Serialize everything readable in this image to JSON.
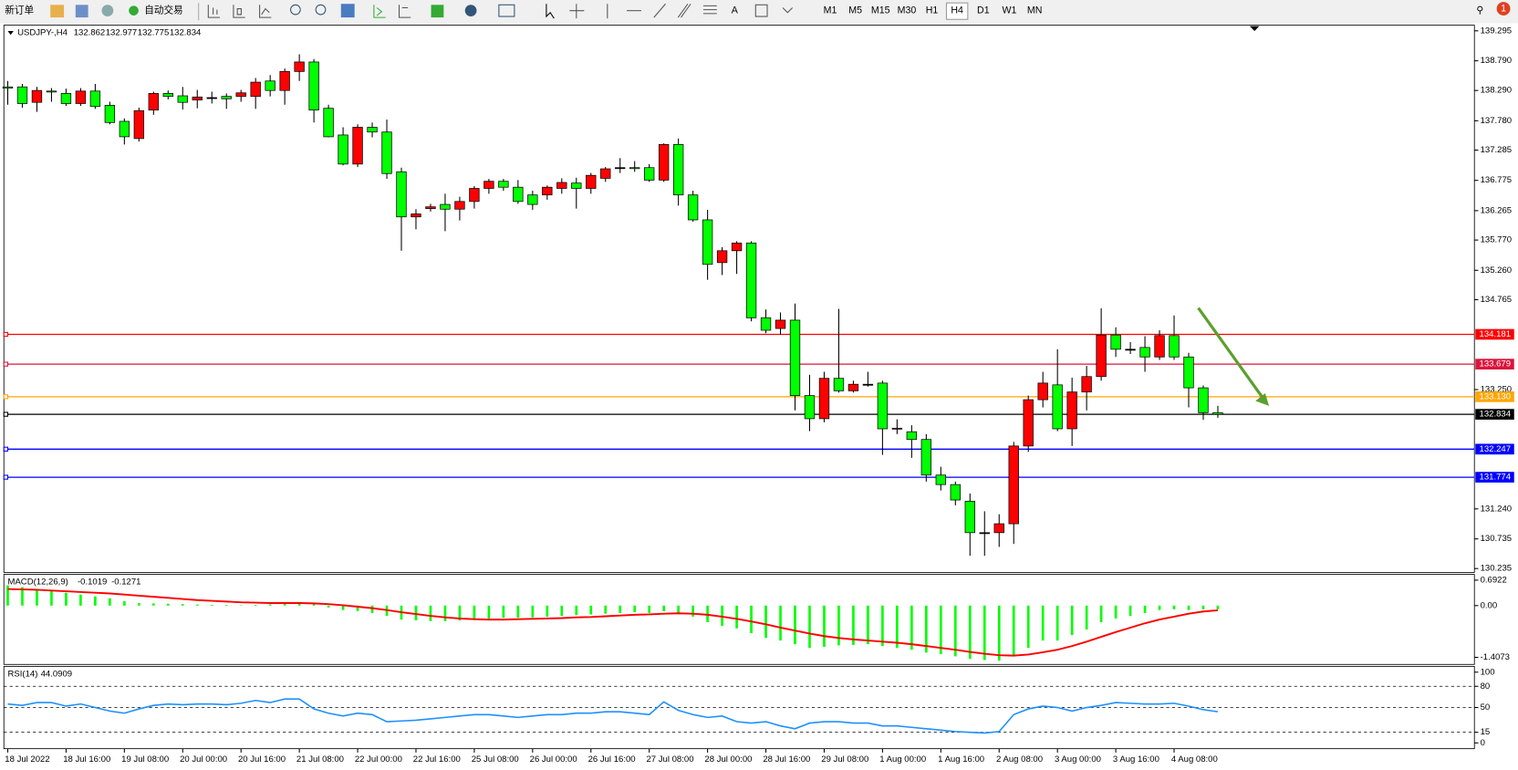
{
  "toolbar": {
    "new_order": "新订单",
    "auto_trade": "自动交易",
    "timeframes": [
      "M1",
      "M5",
      "M15",
      "M30",
      "H1",
      "H4",
      "D1",
      "W1",
      "MN"
    ],
    "active_timeframe": 5,
    "badge": "1"
  },
  "chart": {
    "type": "candlestick",
    "symbol": "USDJPY-,H4",
    "header_ohlc": [
      132.862,
      132.977,
      132.775,
      132.834
    ],
    "ylim": [
      130.17,
      139.39
    ],
    "yticks": [
      139.295,
      {
        "value": 138.79,
        "label": "138.790"
      },
      {
        "value": 138.29,
        "label": "138.290"
      },
      {
        "value": 137.78,
        "label": "137.780"
      },
      137.285,
      136.775,
      136.265,
      {
        "value": 135.77,
        "label": "135.770"
      },
      {
        "value": 135.26,
        "label": "135.260"
      },
      134.765,
      {
        "value": 133.25,
        "label": "133.250"
      },
      {
        "value": 131.24,
        "label": "131.240"
      },
      130.735,
      130.235
    ],
    "up_color": "#ff0000",
    "down_color": "#00ff00",
    "candles": [
      [
        138.35,
        138.45,
        138.05,
        138.33
      ],
      [
        138.35,
        138.4,
        138.0,
        138.07
      ],
      [
        138.09,
        138.35,
        137.93,
        138.29
      ],
      [
        138.28,
        138.33,
        138.1,
        138.27
      ],
      [
        138.24,
        138.32,
        138.03,
        138.07
      ],
      [
        138.07,
        138.33,
        138.03,
        138.28
      ],
      [
        138.28,
        138.4,
        137.98,
        138.02
      ],
      [
        138.04,
        138.1,
        137.72,
        137.75
      ],
      [
        137.77,
        137.82,
        137.38,
        137.51
      ],
      [
        137.48,
        138.0,
        137.43,
        137.95
      ],
      [
        137.96,
        138.27,
        137.88,
        138.24
      ],
      [
        138.24,
        138.29,
        138.14,
        138.19
      ],
      [
        138.2,
        138.35,
        137.97,
        138.09
      ],
      [
        138.13,
        138.3,
        137.99,
        138.18
      ],
      [
        138.17,
        138.27,
        138.07,
        138.17
      ],
      [
        138.19,
        138.24,
        137.98,
        138.15
      ],
      [
        138.19,
        138.3,
        138.1,
        138.25
      ],
      [
        138.19,
        138.5,
        137.98,
        138.43
      ],
      [
        138.45,
        138.55,
        138.19,
        138.29
      ],
      [
        138.29,
        138.66,
        138.05,
        138.61
      ],
      [
        138.61,
        138.9,
        138.45,
        138.77
      ],
      [
        138.77,
        138.82,
        137.75,
        137.96
      ],
      [
        137.99,
        138.05,
        137.5,
        137.51
      ],
      [
        137.54,
        137.67,
        137.03,
        137.05
      ],
      [
        137.05,
        137.72,
        137.0,
        137.67
      ],
      [
        137.67,
        137.75,
        137.5,
        137.59
      ],
      [
        137.59,
        137.8,
        136.8,
        136.89
      ],
      [
        136.92,
        136.99,
        135.59,
        136.16
      ],
      [
        136.16,
        136.29,
        135.95,
        136.21
      ],
      [
        136.3,
        136.38,
        136.25,
        136.33
      ],
      [
        136.37,
        136.55,
        135.92,
        136.29
      ],
      [
        136.29,
        136.5,
        136.1,
        136.42
      ],
      [
        136.42,
        136.68,
        136.3,
        136.64
      ],
      [
        136.64,
        136.8,
        136.55,
        136.76
      ],
      [
        136.76,
        136.8,
        136.6,
        136.66
      ],
      [
        136.66,
        136.78,
        136.38,
        136.42
      ],
      [
        136.53,
        136.6,
        136.28,
        136.37
      ],
      [
        136.53,
        136.69,
        136.45,
        136.66
      ],
      [
        136.64,
        136.81,
        136.55,
        136.74
      ],
      [
        136.73,
        136.82,
        136.3,
        136.64
      ],
      [
        136.64,
        136.9,
        136.55,
        136.86
      ],
      [
        136.81,
        137.0,
        136.75,
        136.97
      ],
      [
        136.99,
        137.15,
        136.9,
        136.99
      ],
      [
        136.99,
        137.1,
        136.92,
        136.98
      ],
      [
        136.99,
        137.05,
        136.75,
        136.78
      ],
      [
        136.78,
        137.4,
        136.75,
        137.38
      ],
      [
        137.38,
        137.48,
        136.35,
        136.53
      ],
      [
        136.53,
        136.6,
        136.08,
        136.11
      ],
      [
        136.11,
        136.28,
        135.1,
        135.36
      ],
      [
        135.39,
        135.65,
        135.18,
        135.59
      ],
      [
        135.59,
        135.75,
        135.2,
        135.72
      ],
      [
        135.72,
        135.75,
        134.4,
        134.46
      ],
      [
        134.46,
        134.6,
        134.2,
        134.25
      ],
      [
        134.28,
        134.55,
        134.18,
        134.42
      ],
      [
        134.42,
        134.7,
        132.9,
        133.15
      ],
      [
        133.15,
        133.5,
        132.55,
        132.76
      ],
      [
        132.76,
        133.55,
        132.7,
        133.44
      ],
      [
        133.44,
        134.61,
        133.2,
        133.23
      ],
      [
        133.23,
        133.4,
        133.2,
        133.34
      ],
      [
        133.34,
        133.55,
        133.3,
        133.34
      ],
      [
        133.36,
        133.4,
        132.15,
        132.59
      ],
      [
        132.59,
        132.75,
        132.5,
        132.6
      ],
      [
        132.54,
        132.65,
        132.1,
        132.41
      ],
      [
        132.41,
        132.5,
        131.7,
        131.81
      ],
      [
        131.81,
        131.95,
        131.55,
        131.65
      ],
      [
        131.65,
        131.7,
        131.3,
        131.39
      ],
      [
        131.37,
        131.5,
        130.45,
        130.84
      ],
      [
        130.84,
        131.2,
        130.45,
        130.84
      ],
      [
        130.84,
        131.15,
        130.6,
        130.99
      ],
      [
        130.99,
        132.37,
        130.65,
        132.3
      ],
      [
        132.3,
        133.15,
        132.2,
        133.08
      ],
      [
        133.08,
        133.55,
        132.95,
        133.36
      ],
      [
        133.33,
        133.93,
        132.55,
        132.59
      ],
      [
        132.59,
        133.45,
        132.3,
        133.21
      ],
      [
        133.21,
        133.65,
        132.9,
        133.47
      ],
      [
        133.47,
        134.62,
        133.4,
        134.17
      ],
      [
        134.17,
        134.3,
        133.8,
        133.93
      ],
      [
        133.93,
        134.05,
        133.85,
        133.93
      ],
      [
        133.96,
        134.15,
        133.55,
        133.8
      ],
      [
        133.8,
        134.25,
        133.75,
        134.16
      ],
      [
        134.16,
        134.5,
        133.75,
        133.8
      ],
      [
        133.8,
        133.87,
        132.95,
        133.28
      ],
      [
        133.28,
        133.32,
        132.74,
        132.86
      ],
      [
        132.862,
        132.977,
        132.775,
        132.834
      ]
    ],
    "levels": [
      {
        "value": 134.181,
        "color": "#ff0000"
      },
      {
        "value": 133.679,
        "color": "#dc143c"
      },
      {
        "value": {
          "value": 133.13,
          "label": "133.130"
        },
        "color": "#ffa500"
      },
      {
        "value": 132.247,
        "color": "#0000ff"
      },
      {
        "value": 131.774,
        "color": "#0000ff"
      }
    ],
    "current": {
      "value": 132.834,
      "color": "#000000"
    },
    "x_labels": [
      "18 Jul 2022",
      "18 Jul 16:00",
      "19 Jul 08:00",
      "20 Jul 00:00",
      "20 Jul 16:00",
      "21 Jul 08:00",
      "22 Jul 00:00",
      "22 Jul 16:00",
      "25 Jul 08:00",
      "26 Jul 00:00",
      "26 Jul 16:00",
      "27 Jul 08:00",
      "28 Jul 00:00",
      "28 Jul 16:00",
      "29 Jul 08:00",
      "1 Aug 00:00",
      "1 Aug 16:00",
      "2 Aug 08:00",
      "3 Aug 00:00",
      "3 Aug 16:00",
      "4 Aug 08:00"
    ]
  },
  "macd": {
    "label": "MACD(12,26,9)",
    "readout": [
      -0.1019,
      -0.1271
    ],
    "ylim": [
      -1.6,
      0.85
    ],
    "yticks": [
      0.6922,
      {
        "value": 0,
        "label": "0.00"
      },
      -1.4073
    ],
    "hist_color": "#00ff00",
    "signal_color": "#ff0000",
    "histogram": [
      0.55,
      0.5,
      0.45,
      0.4,
      0.35,
      0.3,
      0.25,
      0.2,
      0.12,
      0.07,
      0.06,
      0.05,
      0.04,
      0.03,
      0.02,
      0.02,
      0.01,
      0.02,
      0.03,
      0.05,
      0.08,
      0.04,
      -0.05,
      -0.12,
      -0.15,
      -0.2,
      -0.28,
      -0.38,
      -0.4,
      -0.42,
      -0.42,
      -0.4,
      -0.38,
      -0.35,
      -0.33,
      -0.33,
      -0.32,
      -0.3,
      -0.28,
      -0.26,
      -0.24,
      -0.22,
      -0.2,
      -0.18,
      -0.2,
      -0.15,
      -0.2,
      -0.3,
      -0.45,
      -0.55,
      -0.62,
      -0.75,
      -0.88,
      -0.95,
      -1.05,
      -1.15,
      -1.12,
      -1.08,
      -1.07,
      -1.05,
      -1.1,
      -1.15,
      -1.2,
      -1.28,
      -1.32,
      -1.38,
      -1.45,
      -1.48,
      -1.5,
      -1.35,
      -1.15,
      -0.95,
      -0.95,
      -0.8,
      -0.65,
      -0.45,
      -0.35,
      -0.28,
      -0.2,
      -0.12,
      -0.1,
      -0.12,
      -0.1,
      -0.1019
    ],
    "signal": [
      0.45,
      0.44,
      0.43,
      0.41,
      0.39,
      0.37,
      0.35,
      0.33,
      0.3,
      0.27,
      0.24,
      0.21,
      0.18,
      0.15,
      0.13,
      0.11,
      0.09,
      0.08,
      0.07,
      0.07,
      0.07,
      0.06,
      0.04,
      0.01,
      -0.03,
      -0.07,
      -0.12,
      -0.18,
      -0.23,
      -0.28,
      -0.32,
      -0.35,
      -0.37,
      -0.38,
      -0.38,
      -0.37,
      -0.36,
      -0.35,
      -0.34,
      -0.32,
      -0.31,
      -0.29,
      -0.27,
      -0.25,
      -0.24,
      -0.22,
      -0.21,
      -0.22,
      -0.25,
      -0.3,
      -0.36,
      -0.43,
      -0.51,
      -0.6,
      -0.68,
      -0.76,
      -0.83,
      -0.88,
      -0.92,
      -0.95,
      -0.98,
      -1.01,
      -1.05,
      -1.1,
      -1.15,
      -1.2,
      -1.26,
      -1.31,
      -1.35,
      -1.36,
      -1.33,
      -1.27,
      -1.2,
      -1.1,
      -0.98,
      -0.85,
      -0.72,
      -0.6,
      -0.48,
      -0.38,
      -0.3,
      -0.22,
      -0.16,
      -0.1271
    ]
  },
  "rsi": {
    "label": "RSI(14)",
    "readout": 44.0909,
    "ylim": [
      -8.2,
      108.2
    ],
    "yticks": [
      100,
      80,
      50,
      15,
      0
    ],
    "levels": [
      80,
      50,
      15
    ],
    "color": "#1e90ff",
    "values": [
      55,
      53,
      57,
      57,
      52,
      55,
      50,
      45,
      42,
      48,
      53,
      55,
      54,
      55,
      55,
      54,
      56,
      60,
      57,
      62,
      62,
      48,
      42,
      38,
      42,
      40,
      30,
      31,
      32,
      34,
      36,
      38,
      40,
      40,
      38,
      36,
      38,
      40,
      40,
      42,
      42,
      44,
      44,
      42,
      40,
      58,
      46,
      40,
      36,
      38,
      30,
      28,
      30,
      24,
      20,
      28,
      30,
      30,
      28,
      28,
      24,
      24,
      22,
      20,
      18,
      16,
      15,
      14,
      16,
      40,
      48,
      52,
      50,
      45,
      50,
      53,
      57,
      56,
      55,
      55,
      56,
      52,
      47,
      44.0909
    ]
  }
}
